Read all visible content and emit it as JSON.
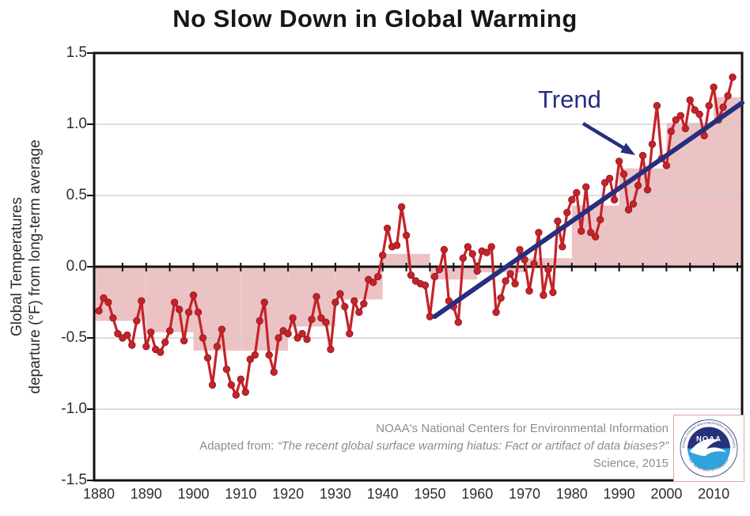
{
  "title": "No Slow Down in Global Warming",
  "trend_label": "Trend",
  "y_axis": {
    "title_line1": "Global Temperatures",
    "title_line2": "departure (°F) from long-term average",
    "ticks": [
      "1.5",
      "1.0",
      "0.5",
      "0.0",
      "-0.5",
      "-1.0",
      "-1.5"
    ],
    "tick_values": [
      1.5,
      1.0,
      0.5,
      0.0,
      -0.5,
      -1.0,
      -1.5
    ]
  },
  "x_axis": {
    "ticks": [
      1880,
      1890,
      1900,
      1910,
      1920,
      1930,
      1940,
      1950,
      1960,
      1970,
      1980,
      1990,
      2000,
      2010
    ]
  },
  "attribution": {
    "line1": "NOAA's National Centers for Environmental Information",
    "line2_prefix": "Adapted from: ",
    "line2_quote": "“The recent global surface warming hiatus: Fact or artifact of data biases?”",
    "line3": "Science, 2015"
  },
  "logo": {
    "name": "NOAA",
    "ring_top": "NATIONAL OCEANIC AND ATMOSPHERIC ADMINISTRATION",
    "ring_bottom": "U.S. DEPARTMENT OF COMMERCE"
  },
  "colors": {
    "annual_line": "#c5232a",
    "annual_dot": "#c5232a",
    "dot_edge": "#991b21",
    "decadal_fill": "#ecc3c5",
    "trend": "#272e7f",
    "grid": "#c9c9c9",
    "axis": "#111111",
    "attribution_text": "#8c8c8c",
    "logo_navy": "#26317e",
    "logo_cyan": "#2fa3dc"
  },
  "chart_data": {
    "type": "line",
    "title": "No Slow Down in Global Warming",
    "xlabel": "",
    "ylabel": "Global Temperatures departure (°F) from long-term average",
    "ylim": [
      -1.5,
      1.5
    ],
    "xlim": [
      1879,
      2016
    ],
    "grid": true,
    "legend_position": "none",
    "start_year": 1880,
    "units": "°F",
    "annual_values_F": [
      -0.31,
      -0.22,
      -0.25,
      -0.36,
      -0.47,
      -0.5,
      -0.48,
      -0.55,
      -0.38,
      -0.24,
      -0.56,
      -0.46,
      -0.58,
      -0.6,
      -0.53,
      -0.45,
      -0.25,
      -0.3,
      -0.52,
      -0.32,
      -0.2,
      -0.32,
      -0.5,
      -0.64,
      -0.83,
      -0.56,
      -0.44,
      -0.72,
      -0.83,
      -0.9,
      -0.79,
      -0.88,
      -0.65,
      -0.62,
      -0.38,
      -0.25,
      -0.62,
      -0.74,
      -0.5,
      -0.45,
      -0.47,
      -0.36,
      -0.5,
      -0.47,
      -0.51,
      -0.37,
      -0.21,
      -0.36,
      -0.39,
      -0.58,
      -0.25,
      -0.19,
      -0.28,
      -0.47,
      -0.24,
      -0.32,
      -0.26,
      -0.09,
      -0.11,
      -0.07,
      0.08,
      0.27,
      0.14,
      0.15,
      0.42,
      0.22,
      -0.06,
      -0.1,
      -0.12,
      -0.13,
      -0.35,
      -0.07,
      -0.02,
      0.12,
      -0.24,
      -0.28,
      -0.39,
      0.06,
      0.14,
      0.09,
      -0.03,
      0.11,
      0.1,
      0.14,
      -0.32,
      -0.22,
      -0.1,
      -0.05,
      -0.12,
      0.12,
      0.05,
      -0.17,
      0.02,
      0.24,
      -0.2,
      -0.02,
      -0.18,
      0.32,
      0.14,
      0.38,
      0.47,
      0.52,
      0.25,
      0.56,
      0.24,
      0.21,
      0.33,
      0.59,
      0.62,
      0.47,
      0.74,
      0.65,
      0.4,
      0.44,
      0.57,
      0.78,
      0.54,
      0.86,
      1.13,
      0.76,
      0.71,
      0.95,
      1.03,
      1.06,
      0.97,
      1.17,
      1.1,
      1.07,
      0.92,
      1.13,
      1.26,
      1.03,
      1.12,
      1.2,
      1.33
    ],
    "decadal_averages": [
      {
        "decade": "1880s",
        "start": 1880,
        "end": 1890,
        "avg": -0.38
      },
      {
        "decade": "1890s",
        "start": 1890,
        "end": 1900,
        "avg": -0.46
      },
      {
        "decade": "1900s",
        "start": 1900,
        "end": 1910,
        "avg": -0.59
      },
      {
        "decade": "1910s",
        "start": 1910,
        "end": 1920,
        "avg": -0.59
      },
      {
        "decade": "1920s",
        "start": 1920,
        "end": 1930,
        "avg": -0.42
      },
      {
        "decade": "1930s",
        "start": 1930,
        "end": 1940,
        "avg": -0.23
      },
      {
        "decade": "1940s",
        "start": 1940,
        "end": 1950,
        "avg": 0.09
      },
      {
        "decade": "1950s",
        "start": 1950,
        "end": 1960,
        "avg": -0.09
      },
      {
        "decade": "1960s",
        "start": 1960,
        "end": 1970,
        "avg": -0.04
      },
      {
        "decade": "1970s",
        "start": 1970,
        "end": 1980,
        "avg": 0.06
      },
      {
        "decade": "1980s",
        "start": 1980,
        "end": 1990,
        "avg": 0.43
      },
      {
        "decade": "1990s",
        "start": 1990,
        "end": 2000,
        "avg": 0.69
      },
      {
        "decade": "2000s",
        "start": 2000,
        "end": 2010,
        "avg": 1.01
      },
      {
        "decade": "2010s",
        "start": 2010,
        "end": 2016,
        "avg": 1.19
      }
    ],
    "trend": {
      "start_year": 1951,
      "start_value": -0.35,
      "end_year": 2016,
      "end_value": 1.15
    }
  }
}
